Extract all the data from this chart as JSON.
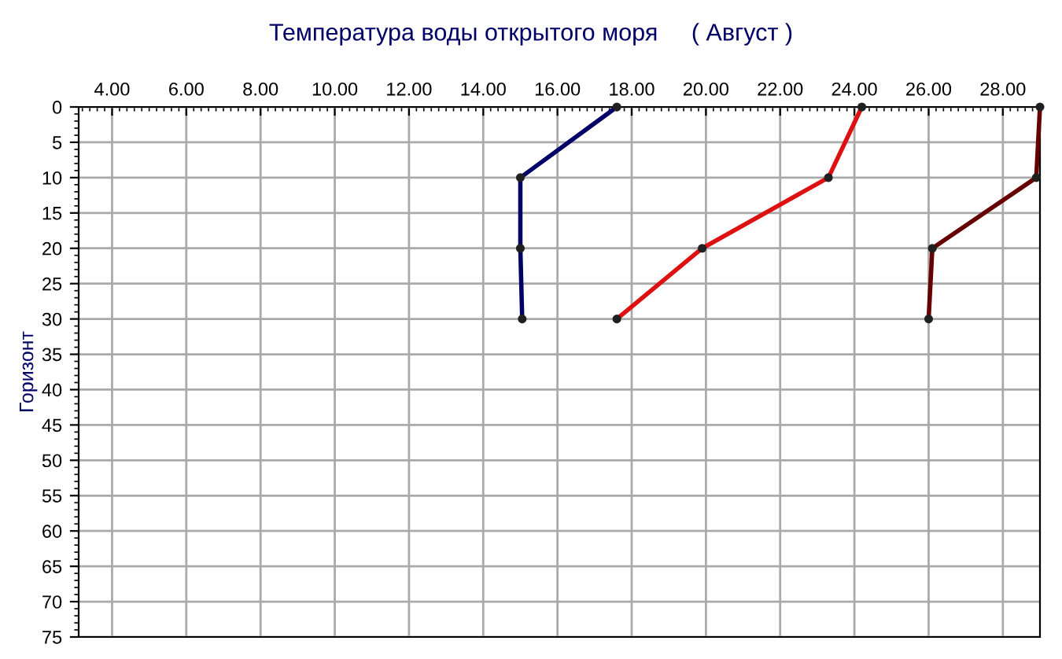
{
  "chart_data": {
    "type": "line",
    "title": "Температура воды открытого моря     ( Август )",
    "ylabel": "Горизонт",
    "series": [
      {
        "color": "#000066",
        "x": [
          17.6,
          15.0,
          15.0,
          15.05
        ],
        "values": [
          0,
          10,
          20,
          30
        ]
      },
      {
        "color": "#dd1111",
        "x": [
          24.2,
          23.3,
          19.9,
          17.6
        ],
        "values": [
          0,
          10,
          20,
          30
        ]
      },
      {
        "color": "#660000",
        "x": [
          29.0,
          28.9,
          26.1,
          26.0
        ],
        "values": [
          0,
          10,
          20,
          30
        ]
      }
    ],
    "xlim": [
      3.1,
      29.0
    ],
    "ylim": [
      75,
      0
    ],
    "xticks": [
      {
        "value": 4,
        "label": "4.00"
      },
      {
        "value": 6,
        "label": "6.00"
      },
      {
        "value": 8,
        "label": "8.00"
      },
      {
        "value": 10,
        "label": "10.00"
      },
      {
        "value": 12,
        "label": "12.00"
      },
      {
        "value": 14,
        "label": "14.00"
      },
      {
        "value": 16,
        "label": "16.00"
      },
      {
        "value": 18,
        "label": "18.00"
      },
      {
        "value": 20,
        "label": "20.00"
      },
      {
        "value": 22,
        "label": "22.00"
      },
      {
        "value": 24,
        "label": "24.00"
      },
      {
        "value": 26,
        "label": "26.00"
      },
      {
        "value": 28,
        "label": "28.00"
      }
    ],
    "yticks": [
      0,
      5,
      10,
      15,
      20,
      25,
      30,
      35,
      40,
      45,
      50,
      55,
      60,
      65,
      70,
      75
    ],
    "grid": true,
    "marker": "circle",
    "line_style": "solid"
  }
}
